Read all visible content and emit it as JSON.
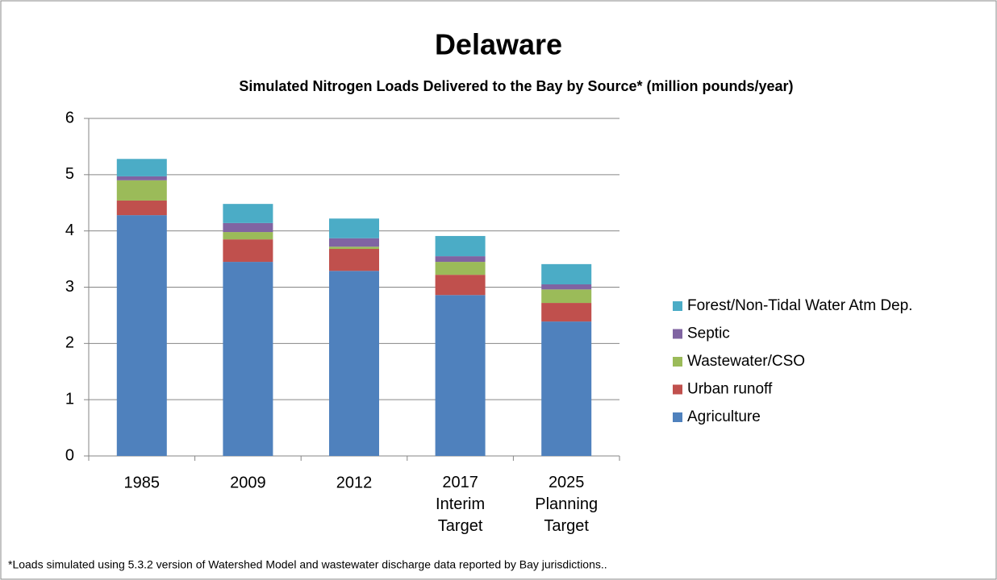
{
  "chart_data": {
    "type": "stacked_bar",
    "title": "Delaware",
    "subtitle": "Simulated Nitrogen Loads Delivered to the Bay by Source* (million pounds/year)",
    "footnote": "*Loads simulated using 5.3.2 version of Watershed Model and wastewater discharge data reported by Bay jurisdictions..",
    "categories": [
      "1985",
      "2009",
      "2012",
      "2017 Interim Target",
      "2025 Planning Target"
    ],
    "series": [
      {
        "name": "Agriculture",
        "color": "#4f81bd",
        "values": [
          4.28,
          3.45,
          3.29,
          2.86,
          2.39
        ]
      },
      {
        "name": "Urban runoff",
        "color": "#c0504d",
        "values": [
          0.26,
          0.4,
          0.39,
          0.36,
          0.33
        ]
      },
      {
        "name": "Wastewater/CSO",
        "color": "#9bbb59",
        "values": [
          0.36,
          0.13,
          0.04,
          0.23,
          0.24
        ]
      },
      {
        "name": "Septic",
        "color": "#8064a2",
        "values": [
          0.07,
          0.16,
          0.15,
          0.1,
          0.09
        ]
      },
      {
        "name": "Forest/Non-Tidal Water Atm Dep.",
        "color": "#4bacc6",
        "values": [
          0.31,
          0.34,
          0.35,
          0.36,
          0.36
        ]
      }
    ],
    "ylim": [
      0,
      6
    ],
    "yticks": [
      0,
      1,
      2,
      3,
      4,
      5,
      6
    ],
    "grid": true,
    "legend": "right"
  }
}
